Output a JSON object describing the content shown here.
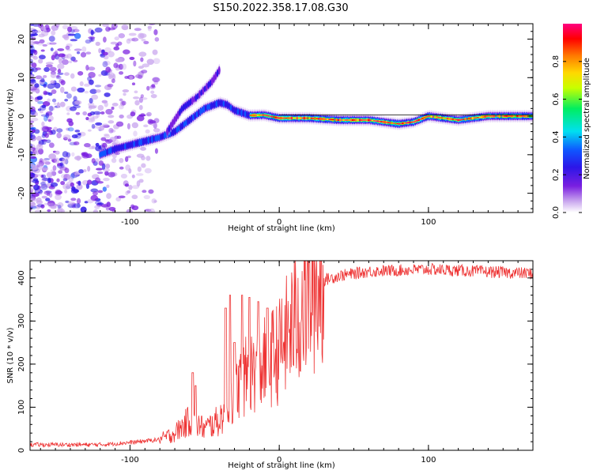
{
  "title": "S150.2022.358.17.08.G30",
  "chart_data": [
    {
      "type": "heatmap",
      "xlabel": "Height of straight line (km)",
      "ylabel": "Frequency (Hz)",
      "xlim": [
        -167,
        170
      ],
      "ylim": [
        -25,
        24
      ],
      "x_ticks": [
        -100,
        0,
        100
      ],
      "y_ticks": [
        -20,
        -10,
        0,
        10,
        20
      ],
      "colorbar": {
        "label": "Normalized spectral amplitude",
        "range": [
          0,
          1
        ],
        "ticks": [
          0.0,
          0.2,
          0.4,
          0.6,
          0.8
        ],
        "colors": [
          "#ffffff",
          "#c9a6ee",
          "#7a1fe0",
          "#2c16e8",
          "#0f56ff",
          "#00e0f0",
          "#00ee60",
          "#c8ff00",
          "#ffd800",
          "#ff7a00",
          "#ff0000",
          "#ff0080"
        ]
      },
      "ridge": {
        "x": [
          -120,
          -110,
          -100,
          -90,
          -80,
          -70,
          -60,
          -50,
          -40,
          -35,
          -30,
          -20,
          -10,
          0,
          20,
          40,
          60,
          70,
          80,
          90,
          100,
          110,
          120,
          140,
          170
        ],
        "frequency": [
          -10,
          -8.5,
          -7.5,
          -6.5,
          -5.5,
          -4,
          -1,
          2,
          3.5,
          3,
          1.5,
          0.2,
          0.3,
          -0.5,
          -0.5,
          -1,
          -1,
          -1.5,
          -2,
          -1.5,
          0,
          -0.5,
          -1,
          0,
          0
        ]
      },
      "side_ridge": {
        "x": [
          -75,
          -65,
          -55,
          -45,
          -40
        ],
        "frequency": [
          -4,
          2,
          5,
          9,
          12
        ]
      }
    },
    {
      "type": "line",
      "xlabel": "Height of straight line (km)",
      "ylabel": "SNR (10 * v/v)",
      "xlim": [
        -167,
        170
      ],
      "ylim": [
        0,
        440
      ],
      "x_ticks": [
        -100,
        0,
        100
      ],
      "y_ticks": [
        0,
        100,
        200,
        300,
        400
      ],
      "color": "#ee3333",
      "trend": {
        "x": [
          -167,
          -120,
          -100,
          -80,
          -70,
          -60,
          -50,
          -40,
          -30,
          -20,
          -10,
          0,
          10,
          20,
          30,
          40,
          60,
          100,
          170
        ],
        "y": [
          13,
          13,
          18,
          25,
          40,
          70,
          50,
          70,
          140,
          180,
          200,
          230,
          300,
          360,
          395,
          405,
          415,
          420,
          410
        ]
      },
      "spikes": {
        "x": [
          -58,
          -56,
          -36,
          -33,
          -30,
          -25,
          -20,
          -14,
          -8
        ],
        "y": [
          180,
          150,
          330,
          360,
          250,
          360,
          355,
          345,
          330
        ]
      }
    }
  ]
}
